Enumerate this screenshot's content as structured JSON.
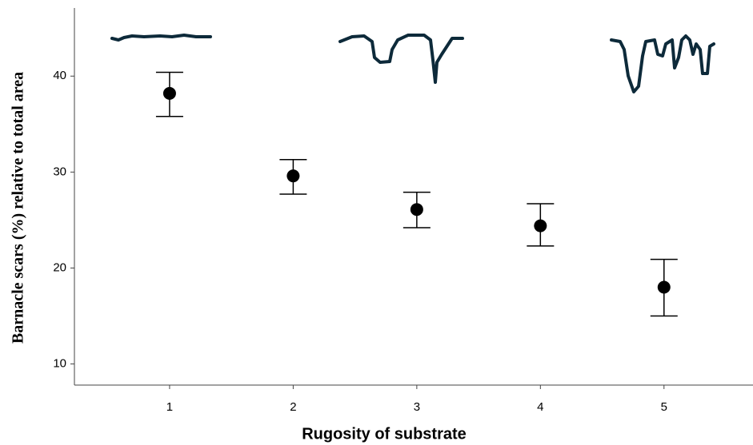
{
  "chart_data": {
    "type": "scatter",
    "x_label": "Rugosity of substrate",
    "y_label": "Barnacle scars (%) relative to total area",
    "x": [
      1,
      2,
      3,
      4,
      5
    ],
    "series": [
      {
        "color": "#000000",
        "values": [
          38.2,
          29.6,
          26.1,
          24.4,
          18.0
        ],
        "lower": [
          35.8,
          27.7,
          24.2,
          22.3,
          15.0
        ],
        "upper": [
          40.4,
          31.3,
          27.9,
          26.7,
          20.9
        ]
      }
    ],
    "xlim": [
      0.23,
      5.72
    ],
    "xticks": [
      1,
      2,
      3,
      4,
      5
    ],
    "ylim": [
      7.8,
      47.1
    ],
    "yticks": [
      10,
      20,
      30,
      40
    ]
  }
}
